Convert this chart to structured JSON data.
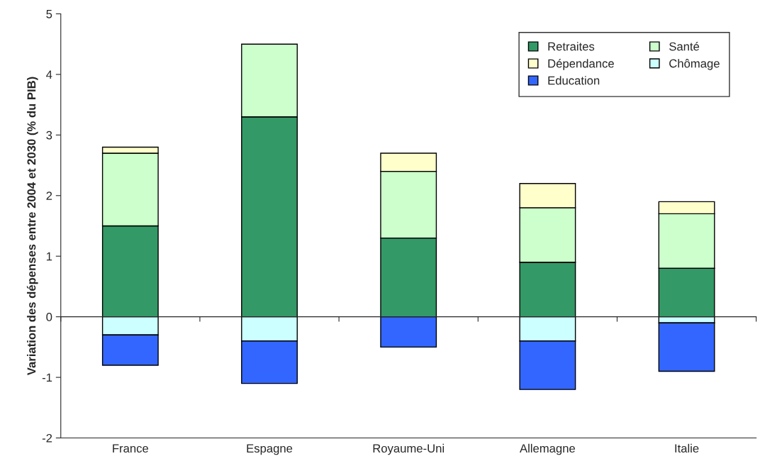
{
  "chart_data": {
    "type": "bar",
    "stacked": true,
    "ylabel": "Variation des dépenses entre 2004 et 2030 (% du PIB)",
    "categories": [
      "France",
      "Espagne",
      "Royaume-Uni",
      "Allemagne",
      "Italie"
    ],
    "series": [
      {
        "name": "Retraites",
        "color": "#339966",
        "values": [
          1.5,
          3.3,
          1.3,
          0.9,
          0.8
        ]
      },
      {
        "name": "Santé",
        "color": "#ccffcc",
        "values": [
          1.2,
          1.2,
          1.1,
          0.9,
          0.9
        ]
      },
      {
        "name": "Dépendance",
        "color": "#ffffcc",
        "values": [
          0.1,
          null,
          0.3,
          0.4,
          0.2
        ]
      },
      {
        "name": "Chômage",
        "color": "#ccffff",
        "values": [
          -0.3,
          -0.4,
          null,
          -0.4,
          -0.1
        ]
      },
      {
        "name": "Education",
        "color": "#3366ff",
        "values": [
          -0.5,
          -0.7,
          -0.5,
          -0.8,
          -0.8
        ]
      }
    ],
    "ylim": [
      -2,
      5
    ],
    "yticks": [
      -2,
      -1,
      0,
      1,
      2,
      3,
      4,
      5
    ],
    "legend": "top right"
  }
}
